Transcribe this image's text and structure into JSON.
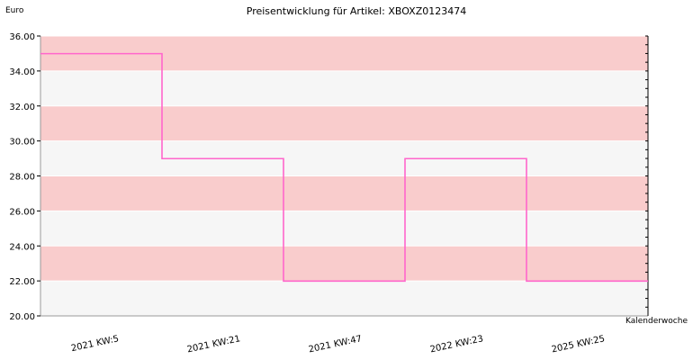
{
  "chart_data": {
    "type": "line",
    "step": true,
    "title": "Preisentwicklung für Artikel: XBOXZ0123474",
    "ylabel": "Euro",
    "xlabel": "Kalenderwoche",
    "ylim": [
      20,
      36
    ],
    "yticks": [
      "20.00",
      "22.00",
      "24.00",
      "26.00",
      "28.00",
      "30.00",
      "32.00",
      "34.00",
      "36.00"
    ],
    "categories": [
      "2021 KW:5",
      "2021 KW:21",
      "2021 KW:47",
      "2022 KW:23",
      "2025 KW:25"
    ],
    "series": [
      {
        "values": [
          34.99,
          28.99,
          21.99,
          28.99,
          21.99
        ]
      }
    ],
    "grid": true,
    "band_colors": [
      "#f9cccc",
      "#f6f6f6"
    ],
    "line_color": "#ff66cc",
    "legend": "none"
  }
}
